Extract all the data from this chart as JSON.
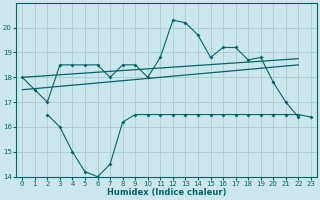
{
  "xlabel": "Humidex (Indice chaleur)",
  "background_color": "#cce8ee",
  "grid_color": "#aacccc",
  "line_color": "#006666",
  "x_values": [
    0,
    1,
    2,
    3,
    4,
    5,
    6,
    7,
    8,
    9,
    10,
    11,
    12,
    13,
    14,
    15,
    16,
    17,
    18,
    19,
    20,
    21,
    22,
    23
  ],
  "line_upper": [
    18.0,
    17.5,
    17.0,
    18.5,
    18.5,
    18.5,
    18.5,
    18.0,
    18.5,
    18.5,
    18.0,
    18.8,
    20.3,
    20.2,
    19.7,
    18.8,
    19.2,
    19.2,
    18.7,
    18.8,
    17.8,
    17.0,
    16.4,
    null
  ],
  "line_lower": [
    null,
    null,
    16.5,
    16.0,
    15.0,
    14.2,
    14.0,
    14.5,
    16.2,
    16.5,
    16.5,
    16.5,
    16.5,
    16.5,
    16.5,
    16.5,
    16.5,
    16.5,
    16.5,
    16.5,
    16.5,
    16.5,
    16.5,
    16.4
  ],
  "trend1_x": [
    0,
    22
  ],
  "trend1_y": [
    18.0,
    18.75
  ],
  "trend2_x": [
    0,
    22
  ],
  "trend2_y": [
    17.5,
    18.5
  ],
  "ylim": [
    14,
    21
  ],
  "xlim": [
    -0.5,
    23.5
  ],
  "yticks": [
    14,
    15,
    16,
    17,
    18,
    19,
    20
  ],
  "xticks": [
    0,
    1,
    2,
    3,
    4,
    5,
    6,
    7,
    8,
    9,
    10,
    11,
    12,
    13,
    14,
    15,
    16,
    17,
    18,
    19,
    20,
    21,
    22,
    23
  ]
}
